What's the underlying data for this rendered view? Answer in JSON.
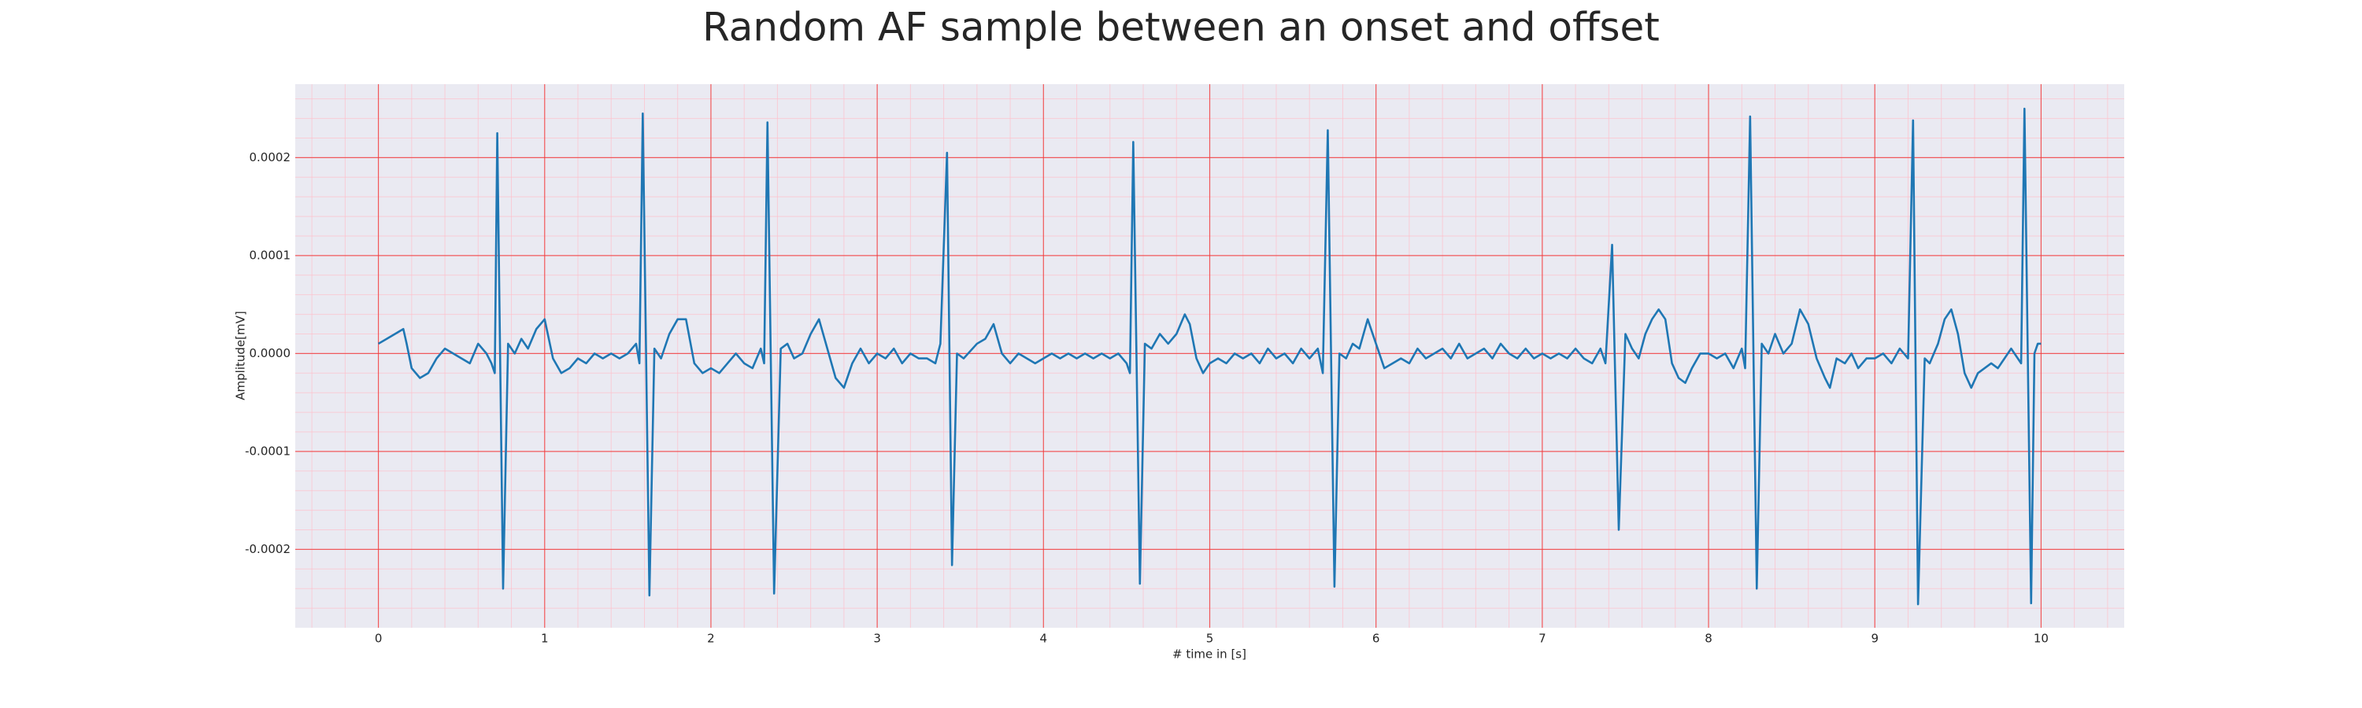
{
  "chart_data": {
    "type": "line",
    "title": "Random AF sample between an onset and offset",
    "xlabel": "# time in [s]",
    "ylabel": "Amplitude[mV]",
    "color": "#1f77b4",
    "grid": true,
    "minor_grid": true,
    "xlim": [
      -0.5,
      10.5
    ],
    "ylim": [
      -0.00028,
      0.000275
    ],
    "xticks": [
      0,
      1,
      2,
      3,
      4,
      5,
      6,
      7,
      8,
      9,
      10
    ],
    "yticks": [
      -0.0002,
      -0.0001,
      {
        "value": 0,
        "label": "0.0000"
      },
      0.0001,
      0.0002
    ],
    "x": [
      0.0,
      0.05,
      0.1,
      0.15,
      0.17,
      0.2,
      0.25,
      0.3,
      0.35,
      0.4,
      0.45,
      0.5,
      0.55,
      0.6,
      0.65,
      0.68,
      0.7,
      0.715,
      0.75,
      0.78,
      0.82,
      0.86,
      0.9,
      0.95,
      1.0,
      1.05,
      1.1,
      1.15,
      1.2,
      1.25,
      1.3,
      1.35,
      1.4,
      1.45,
      1.5,
      1.55,
      1.57,
      1.59,
      1.63,
      1.66,
      1.7,
      1.75,
      1.8,
      1.85,
      1.9,
      1.95,
      2.0,
      2.05,
      2.1,
      2.15,
      2.2,
      2.25,
      2.3,
      2.32,
      2.34,
      2.38,
      2.42,
      2.46,
      2.5,
      2.55,
      2.6,
      2.65,
      2.7,
      2.75,
      2.8,
      2.85,
      2.9,
      2.95,
      3.0,
      3.05,
      3.1,
      3.15,
      3.2,
      3.25,
      3.3,
      3.35,
      3.38,
      3.42,
      3.45,
      3.48,
      3.52,
      3.6,
      3.65,
      3.7,
      3.75,
      3.8,
      3.85,
      3.9,
      3.95,
      4.0,
      4.05,
      4.1,
      4.15,
      4.2,
      4.25,
      4.3,
      4.35,
      4.4,
      4.45,
      4.5,
      4.52,
      4.54,
      4.58,
      4.61,
      4.65,
      4.7,
      4.75,
      4.8,
      4.85,
      4.88,
      4.92,
      4.96,
      5.0,
      5.05,
      5.1,
      5.15,
      5.2,
      5.25,
      5.3,
      5.35,
      5.4,
      5.45,
      5.5,
      5.55,
      5.6,
      5.65,
      5.68,
      5.71,
      5.75,
      5.78,
      5.82,
      5.86,
      5.9,
      5.95,
      6.0,
      6.05,
      6.1,
      6.15,
      6.2,
      6.25,
      6.3,
      6.35,
      6.4,
      6.45,
      6.5,
      6.55,
      6.6,
      6.65,
      6.7,
      6.75,
      6.8,
      6.85,
      6.9,
      6.95,
      7.0,
      7.05,
      7.1,
      7.15,
      7.2,
      7.25,
      7.3,
      7.35,
      7.38,
      7.42,
      7.46,
      7.5,
      7.54,
      7.58,
      7.62,
      7.66,
      7.7,
      7.74,
      7.78,
      7.82,
      7.86,
      7.9,
      7.95,
      8.0,
      8.05,
      8.1,
      8.15,
      8.2,
      8.22,
      8.25,
      8.29,
      8.32,
      8.36,
      8.4,
      8.45,
      8.5,
      8.55,
      8.6,
      8.65,
      8.7,
      8.73,
      8.77,
      8.82,
      8.86,
      8.9,
      8.95,
      9.0,
      9.05,
      9.1,
      9.15,
      9.2,
      9.23,
      9.26,
      9.3,
      9.33,
      9.38,
      9.42,
      9.46,
      9.5,
      9.54,
      9.58,
      9.62,
      9.66,
      9.7,
      9.74,
      9.78,
      9.82,
      9.86,
      9.88,
      9.9,
      9.94,
      9.96,
      9.98,
      10.0
    ],
    "values": [
      1e-05,
      1.5e-05,
      2e-05,
      2.5e-05,
      1e-05,
      -1.5e-05,
      -2.5e-05,
      -2e-05,
      -5e-06,
      5e-06,
      0,
      -5e-06,
      -1e-05,
      1e-05,
      0,
      -1e-05,
      -2e-05,
      0.000225,
      -0.00024,
      1e-05,
      0,
      1.5e-05,
      5e-06,
      2.5e-05,
      3.5e-05,
      -5e-06,
      -2e-05,
      -1.5e-05,
      -5e-06,
      -1e-05,
      0,
      -5e-06,
      0,
      -5e-06,
      0,
      1e-05,
      -1e-05,
      0.000245,
      -0.000247,
      5e-06,
      -5e-06,
      2e-05,
      3.5e-05,
      3.5e-05,
      -1e-05,
      -2e-05,
      -1.5e-05,
      -2e-05,
      -1e-05,
      0,
      -1e-05,
      -1.5e-05,
      5e-06,
      -1e-05,
      0.000236,
      -0.000245,
      5e-06,
      1e-05,
      -5e-06,
      0,
      2e-05,
      3.5e-05,
      5e-06,
      -2.5e-05,
      -3.5e-05,
      -1e-05,
      5e-06,
      -1e-05,
      0,
      -5e-06,
      5e-06,
      -1e-05,
      0,
      -5e-06,
      -5e-06,
      -1e-05,
      1e-05,
      0.000205,
      -0.000216,
      0,
      -5e-06,
      1e-05,
      1.5e-05,
      3e-05,
      0,
      -1e-05,
      0,
      -5e-06,
      -1e-05,
      -5e-06,
      0,
      -5e-06,
      0,
      -5e-06,
      0,
      -5e-06,
      0,
      -5e-06,
      0,
      -1e-05,
      -2e-05,
      0.000216,
      -0.000235,
      1e-05,
      5e-06,
      2e-05,
      1e-05,
      2e-05,
      4e-05,
      3e-05,
      -5e-06,
      -2e-05,
      -1e-05,
      -5e-06,
      -1e-05,
      0,
      -5e-06,
      0,
      -1e-05,
      5e-06,
      -5e-06,
      0,
      -1e-05,
      5e-06,
      -5e-06,
      5e-06,
      -2e-05,
      0.000228,
      -0.000238,
      0,
      -5e-06,
      1e-05,
      5e-06,
      3.5e-05,
      1e-05,
      -1.5e-05,
      -1e-05,
      -5e-06,
      -1e-05,
      5e-06,
      -5e-06,
      0,
      5e-06,
      -5e-06,
      1e-05,
      -5e-06,
      0,
      5e-06,
      -5e-06,
      1e-05,
      0,
      -5e-06,
      5e-06,
      -5e-06,
      0,
      -5e-06,
      0,
      -5e-06,
      5e-06,
      -5e-06,
      -1e-05,
      5e-06,
      -1e-05,
      0.000111,
      -0.00018,
      2e-05,
      5e-06,
      -5e-06,
      2e-05,
      3.5e-05,
      4.5e-05,
      3.5e-05,
      -1e-05,
      -2.5e-05,
      -3e-05,
      -1.5e-05,
      0,
      0,
      -5e-06,
      0,
      -1.5e-05,
      5e-06,
      -1.5e-05,
      0.000242,
      -0.00024,
      1e-05,
      0,
      2e-05,
      0,
      1e-05,
      4.5e-05,
      3e-05,
      -5e-06,
      -2.5e-05,
      -3.5e-05,
      -5e-06,
      -1e-05,
      0,
      -1.5e-05,
      -5e-06,
      -5e-06,
      0,
      -1e-05,
      5e-06,
      -5e-06,
      0.000238,
      -0.000256,
      -5e-06,
      -1e-05,
      1e-05,
      3.5e-05,
      4.5e-05,
      2e-05,
      -2e-05,
      -3.5e-05,
      -2e-05,
      -1.5e-05,
      -1e-05,
      -1.5e-05,
      -5e-06,
      5e-06,
      -5e-06,
      -1e-05,
      0.00025,
      -0.000255,
      0,
      1e-05,
      1e-05
    ]
  }
}
